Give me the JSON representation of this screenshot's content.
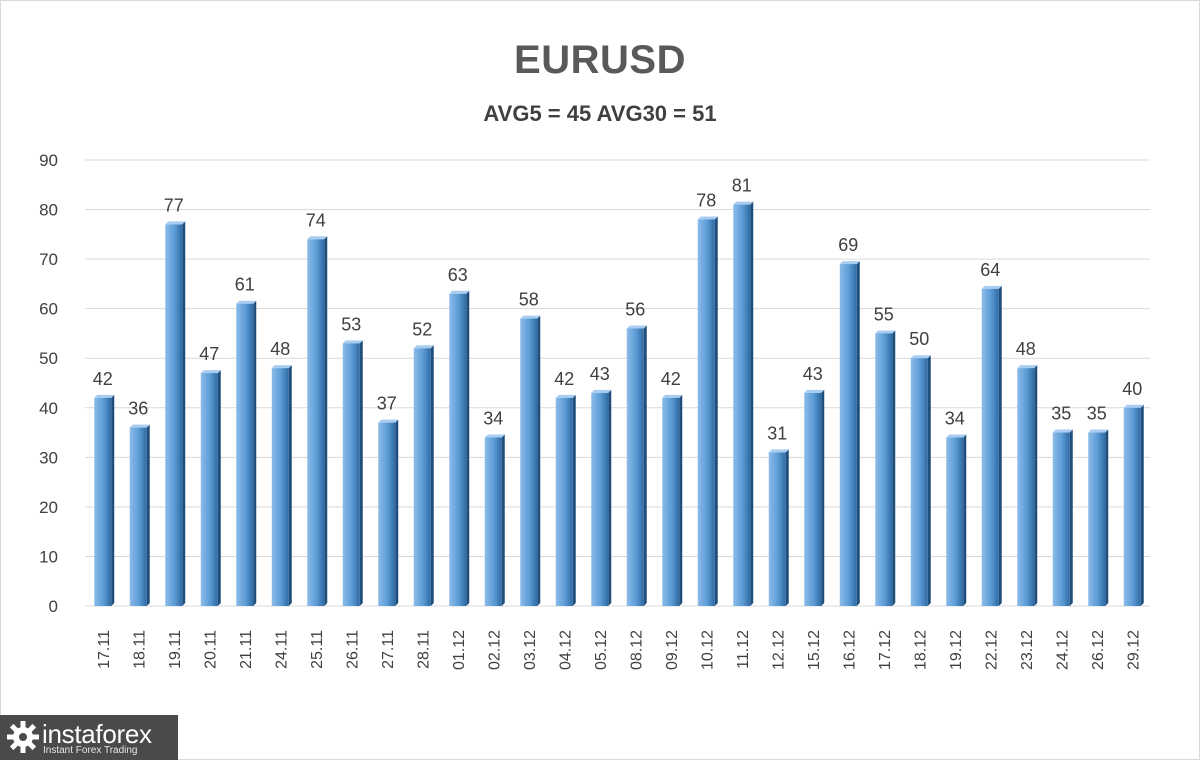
{
  "title": "EURUSD",
  "subtitle": "AVG5 = 45 AVG30 = 51",
  "logo": {
    "brand": "instaforex",
    "tagline": "Instant Forex Trading"
  },
  "colors": {
    "bar": "#5b9bd5",
    "bar_dark": "#2e6aa3",
    "grid": "#d9d9d9",
    "text": "#404040"
  },
  "chart_data": {
    "type": "bar",
    "title": "EURUSD",
    "subtitle": "AVG5 = 45 AVG30 = 51",
    "categories": [
      "17.11",
      "18.11",
      "19.11",
      "20.11",
      "21.11",
      "24.11",
      "25.11",
      "26.11",
      "27.11",
      "28.11",
      "01.12",
      "02.12",
      "03.12",
      "04.12",
      "05.12",
      "08.12",
      "09.12",
      "10.12",
      "11.12",
      "12.12",
      "15.12",
      "16.12",
      "17.12",
      "18.12",
      "19.12",
      "22.12",
      "23.12",
      "24.12",
      "26.12",
      "29.12"
    ],
    "values": [
      42,
      36,
      77,
      47,
      61,
      48,
      74,
      53,
      37,
      52,
      63,
      34,
      58,
      42,
      43,
      56,
      42,
      78,
      81,
      31,
      43,
      69,
      55,
      50,
      34,
      64,
      48,
      35,
      35,
      40
    ],
    "yticks": [
      0,
      10,
      20,
      30,
      40,
      50,
      60,
      70,
      80,
      90
    ],
    "ylim": [
      0,
      90
    ],
    "grid": true,
    "data_labels": true
  }
}
